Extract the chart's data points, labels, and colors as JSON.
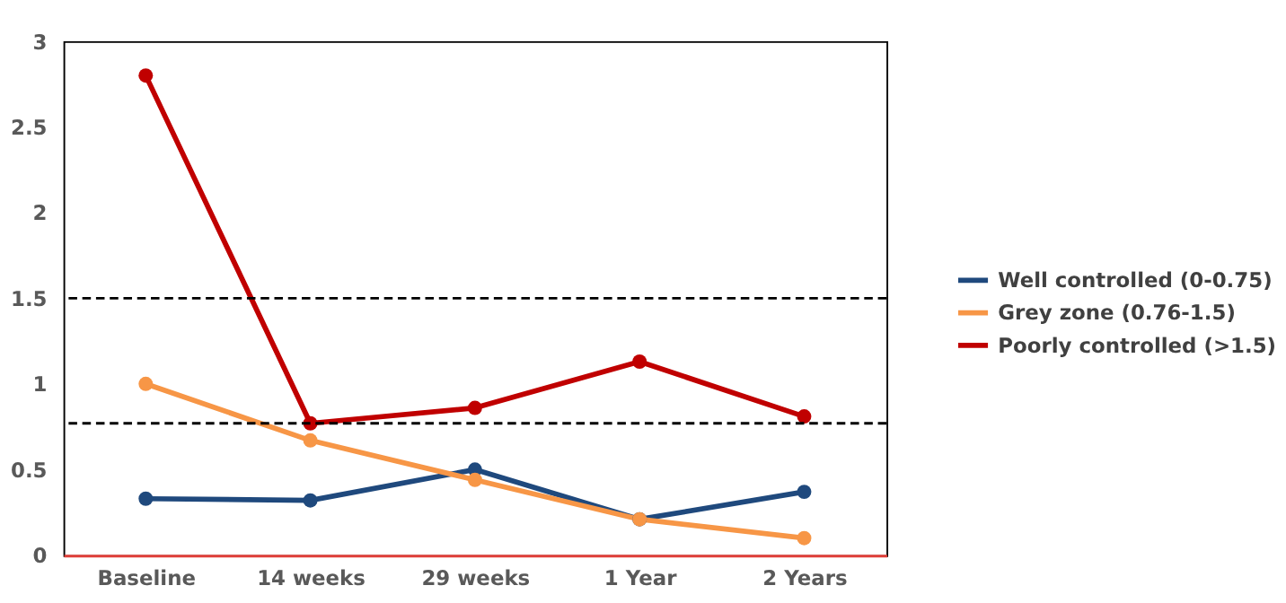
{
  "chart_data": {
    "type": "line",
    "categories": [
      "Baseline",
      "14 weeks",
      "29 weeks",
      "1 Year",
      "2 Years"
    ],
    "series": [
      {
        "name": "Well controlled (0-0.75)",
        "color": "#1f497d",
        "values": [
          0.33,
          0.32,
          0.5,
          0.21,
          0.37
        ]
      },
      {
        "name": "Grey zone (0.76-1.5)",
        "color": "#f79646",
        "values": [
          1.0,
          0.67,
          0.44,
          0.21,
          0.1
        ]
      },
      {
        "name": "Poorly controlled (>1.5)",
        "color": "#c00000",
        "values": [
          2.8,
          0.77,
          0.86,
          1.13,
          0.81
        ]
      }
    ],
    "ylim": [
      0,
      3
    ],
    "yticks": [
      0,
      0.5,
      1,
      1.5,
      2,
      2.5,
      3
    ],
    "ref_lines": [
      {
        "axis": "y",
        "value": 1.5,
        "color": "#000000",
        "line_style": "dashed"
      },
      {
        "axis": "y",
        "value": 0.77,
        "color": "#000000",
        "line_style": "dashed"
      }
    ],
    "marker": "circle",
    "line_style": "solid",
    "grid": false,
    "legend": "right"
  }
}
